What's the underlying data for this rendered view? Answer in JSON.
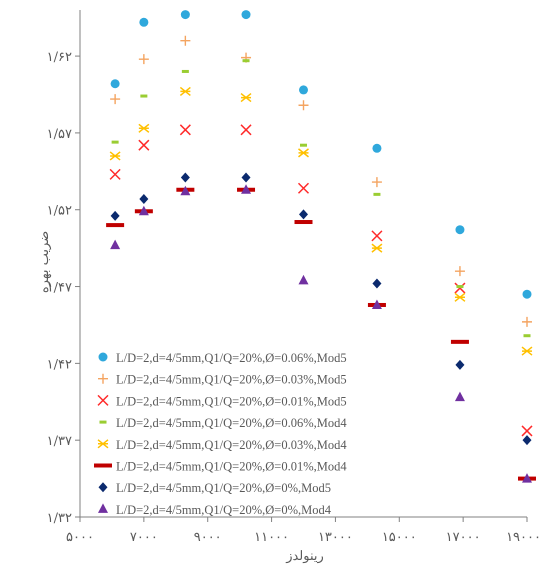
{
  "chart_data": {
    "type": "scatter",
    "title": "",
    "xlabel": "رینولدز",
    "ylabel": "ضریب بهره",
    "xlim": [
      5000,
      19000
    ],
    "ylim": [
      1.32,
      1.65
    ],
    "x_ticks": [
      5000,
      7000,
      9000,
      11000,
      13000,
      15000,
      17000,
      19000
    ],
    "x_tick_labels": [
      "۵۰۰۰",
      "۷۰۰۰",
      "۹۰۰۰",
      "۱۱۰۰۰",
      "۱۳۰۰۰",
      "۱۵۰۰۰",
      "۱۷۰۰۰",
      "۱۹۰۰۰"
    ],
    "y_ticks": [
      1.32,
      1.37,
      1.42,
      1.47,
      1.52,
      1.57,
      1.62
    ],
    "y_tick_labels": [
      "۱/۳۲",
      "۱/۳۷",
      "۱/۴۲",
      "۱/۴۷",
      "۱/۵۲",
      "۱/۵۷",
      "۱/۶۲"
    ],
    "grid": false,
    "legend_position": "bottom-left",
    "series": [
      {
        "name": "L/D=2,d=4/5mm,Q1/Q=20%,Ø=0.06%,Mod5",
        "marker": "circle",
        "color": "#2fa8dc",
        "points": [
          [
            6100,
            1.602
          ],
          [
            7000,
            1.642
          ],
          [
            8300,
            1.647
          ],
          [
            10200,
            1.647
          ],
          [
            12000,
            1.598
          ],
          [
            14300,
            1.56
          ],
          [
            16900,
            1.507
          ],
          [
            19000,
            1.465
          ]
        ]
      },
      {
        "name": "L/D=2,d=4/5mm,Q1/Q=20%,Ø=0.03%,Mod5",
        "marker": "plus",
        "color": "#f4a460",
        "points": [
          [
            6100,
            1.592
          ],
          [
            7000,
            1.618
          ],
          [
            8300,
            1.63
          ],
          [
            10200,
            1.619
          ],
          [
            12000,
            1.588
          ],
          [
            14300,
            1.538
          ],
          [
            16900,
            1.48
          ],
          [
            19000,
            1.447
          ]
        ]
      },
      {
        "name": "L/D=2,d=4/5mm,Q1/Q=20%,Ø=0.01%,Mod5",
        "marker": "x",
        "color": "#ff2a2a",
        "points": [
          [
            6100,
            1.543
          ],
          [
            7000,
            1.562
          ],
          [
            8300,
            1.572
          ],
          [
            10200,
            1.572
          ],
          [
            12000,
            1.534
          ],
          [
            14300,
            1.503
          ],
          [
            16900,
            1.469
          ],
          [
            19000,
            1.376
          ]
        ]
      },
      {
        "name": "L/D=2,d=4/5mm,Q1/Q=20%,Ø=0.06%,Mod4",
        "marker": "dash",
        "color": "#9acd32",
        "points": [
          [
            6100,
            1.564
          ],
          [
            7000,
            1.594
          ],
          [
            8300,
            1.61
          ],
          [
            10200,
            1.617
          ],
          [
            12000,
            1.562
          ],
          [
            14300,
            1.53
          ],
          [
            16900,
            1.47
          ],
          [
            19000,
            1.438
          ]
        ]
      },
      {
        "name": "L/D=2,d=4/5mm,Q1/Q=20%,Ø=0.03%,Mod4",
        "marker": "star",
        "color": "#ffc000",
        "points": [
          [
            6100,
            1.555
          ],
          [
            7000,
            1.573
          ],
          [
            8300,
            1.597
          ],
          [
            10200,
            1.593
          ],
          [
            12000,
            1.557
          ],
          [
            14300,
            1.495
          ],
          [
            16900,
            1.463
          ],
          [
            19000,
            1.428
          ]
        ]
      },
      {
        "name": "L/D=2,d=4/5mm,Q1/Q=20%,Ø=0.01%,Mod4",
        "marker": "bar",
        "color": "#c00000",
        "points": [
          [
            6100,
            1.51
          ],
          [
            7000,
            1.519
          ],
          [
            8300,
            1.533
          ],
          [
            10200,
            1.533
          ],
          [
            12000,
            1.512
          ],
          [
            14300,
            1.458
          ],
          [
            16900,
            1.434
          ],
          [
            19000,
            1.345
          ]
        ]
      },
      {
        "name": "L/D=2,d=4/5mm,Q1/Q=20%,Ø=0%,Mod5",
        "marker": "diamond",
        "color": "#0b2a6e",
        "points": [
          [
            6100,
            1.516
          ],
          [
            7000,
            1.527
          ],
          [
            8300,
            1.541
          ],
          [
            10200,
            1.541
          ],
          [
            12000,
            1.517
          ],
          [
            14300,
            1.472
          ],
          [
            16900,
            1.419
          ],
          [
            19000,
            1.37
          ]
        ]
      },
      {
        "name": "L/D=2,d=4/5mm,Q1/Q=20%,Ø=0%,Mod4",
        "marker": "triangle",
        "color": "#7030a0",
        "points": [
          [
            6100,
            1.497
          ],
          [
            7000,
            1.519
          ],
          [
            8300,
            1.532
          ],
          [
            10200,
            1.533
          ],
          [
            12000,
            1.474
          ],
          [
            14300,
            1.458
          ],
          [
            16900,
            1.398
          ],
          [
            19000,
            1.345
          ]
        ]
      }
    ]
  }
}
